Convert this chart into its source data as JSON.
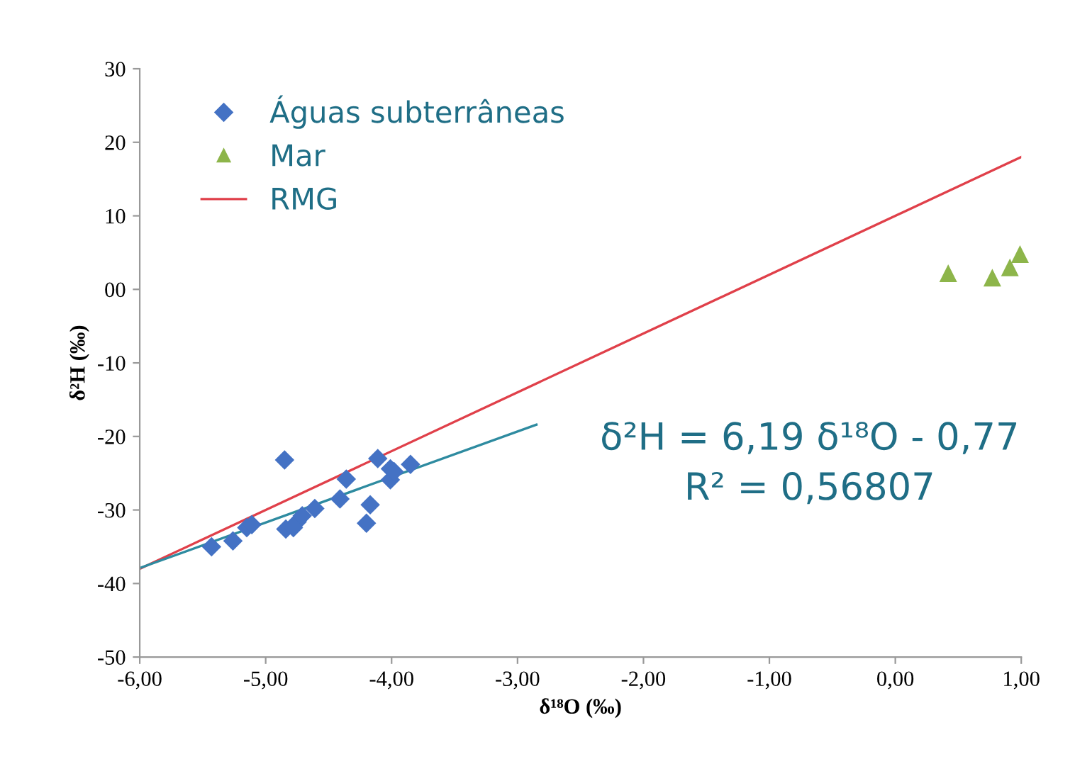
{
  "chart_data": {
    "type": "scatter",
    "xlabel": "δ¹⁸O (‰)",
    "ylabel": "δ²H (‰)",
    "xlim": [
      -6,
      1
    ],
    "ylim": [
      -50,
      30
    ],
    "xticks": [
      {
        "value": -6,
        "label": "-6,00"
      },
      {
        "value": -5,
        "label": "-5,00"
      },
      {
        "value": -4,
        "label": "-4,00"
      },
      {
        "value": -3,
        "label": "-3,00"
      },
      {
        "value": -2,
        "label": "-2,00"
      },
      {
        "value": -1,
        "label": "-1,00"
      },
      {
        "value": 0,
        "label": "0,00"
      },
      {
        "value": 1,
        "label": "1,00"
      }
    ],
    "yticks": [
      -50,
      -40,
      -30,
      -20,
      -10,
      {
        "value": 0,
        "label": "00"
      },
      10,
      20,
      30
    ],
    "grid": false,
    "legend": "top left",
    "series": [
      {
        "name": "Águas subterrâneas",
        "marker": "diamond",
        "color": "#4472c4",
        "x": [
          -5.43,
          -5.26,
          -5.15,
          -5.11,
          -4.85,
          -4.84,
          -4.78,
          -4.75,
          -4.71,
          -4.61,
          -4.41,
          -4.36,
          -4.2,
          -4.17,
          -4.11,
          -4.01,
          -4.01,
          -3.98,
          -3.85
        ],
        "values": [
          -35.0,
          -34.2,
          -32.4,
          -32.0,
          -23.2,
          -32.6,
          -32.4,
          -31.6,
          -30.8,
          -29.8,
          -28.5,
          -25.8,
          -31.8,
          -29.3,
          -23.0,
          -24.4,
          -25.9,
          -24.8,
          -23.8
        ]
      },
      {
        "name": "Mar",
        "marker": "triangle",
        "color": "#8db54a",
        "x": [
          0.42,
          0.77,
          0.91,
          0.99
        ],
        "values": [
          2.2,
          1.6,
          3.0,
          4.8
        ]
      },
      {
        "name": "RMG",
        "type": "line",
        "marker": "none",
        "color": "#e0404a",
        "x": [
          -6,
          1
        ],
        "values": [
          -38,
          18
        ]
      },
      {
        "type": "line",
        "marker": "none",
        "color": "#2e8ba0",
        "x": [
          -6,
          -2.85
        ],
        "values": [
          -37.9,
          -18.4
        ]
      }
    ],
    "annotations": [
      "δ²H = 6,19 δ¹⁸O - 0,77",
      "R² = 0,56807"
    ]
  }
}
